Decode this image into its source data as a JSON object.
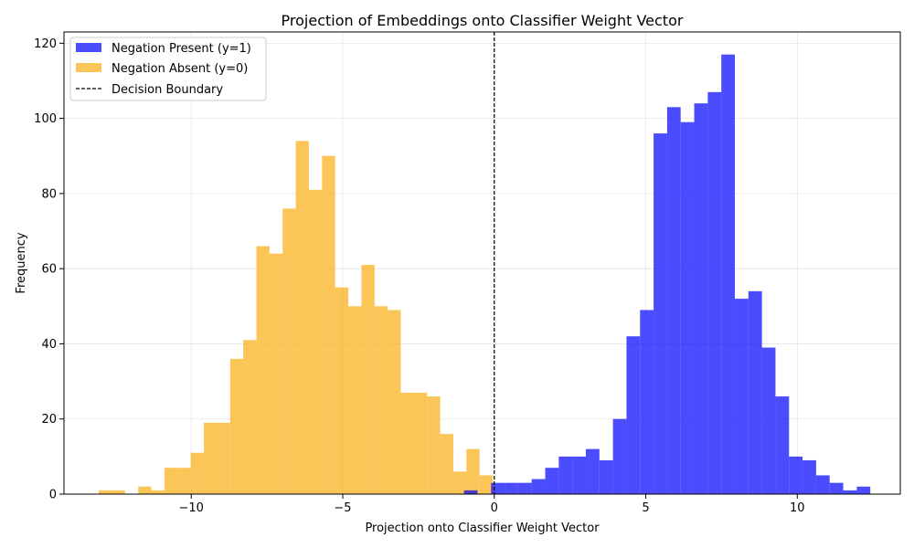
{
  "chart_data": {
    "type": "histogram",
    "title": "Projection of Embeddings onto Classifier Weight Vector",
    "xlabel": "Projection onto Classifier Weight Vector",
    "ylabel": "Frequency",
    "xlim": [
      -14.2,
      13.4
    ],
    "ylim": [
      0,
      123
    ],
    "xticks": [
      -10,
      -5,
      0,
      5,
      10
    ],
    "xtick_labels": [
      "−10",
      "−5",
      "0",
      "5",
      "10"
    ],
    "yticks": [
      0,
      20,
      40,
      60,
      80,
      100,
      120
    ],
    "ytick_labels": [
      "0",
      "20",
      "40",
      "60",
      "80",
      "100",
      "120"
    ],
    "grid": true,
    "legend_position": "top-left",
    "decision_boundary": {
      "x": 0,
      "label": "Decision Boundary",
      "color": "#000000"
    },
    "series": [
      {
        "name": "Negation Absent (y=0)",
        "color": "#FBB21F",
        "opacity": 0.75,
        "bin_start": -13.05,
        "bin_width": 0.4333,
        "counts": [
          1,
          1,
          0,
          2,
          1,
          7,
          7,
          11,
          19,
          19,
          36,
          41,
          66,
          64,
          76,
          94,
          81,
          90,
          55,
          50,
          61,
          50,
          49,
          27,
          27,
          26,
          16,
          6,
          12,
          5
        ]
      },
      {
        "name": "Negation Present (y=1)",
        "color": "#0000FF",
        "opacity": 0.7,
        "bin_start": -1.0,
        "bin_width": 0.447,
        "counts": [
          1,
          0,
          3,
          3,
          3,
          4,
          7,
          10,
          10,
          12,
          9,
          20,
          42,
          49,
          96,
          103,
          99,
          104,
          107,
          117,
          52,
          54,
          39,
          26,
          10,
          9,
          5,
          3,
          1,
          2
        ]
      }
    ]
  }
}
